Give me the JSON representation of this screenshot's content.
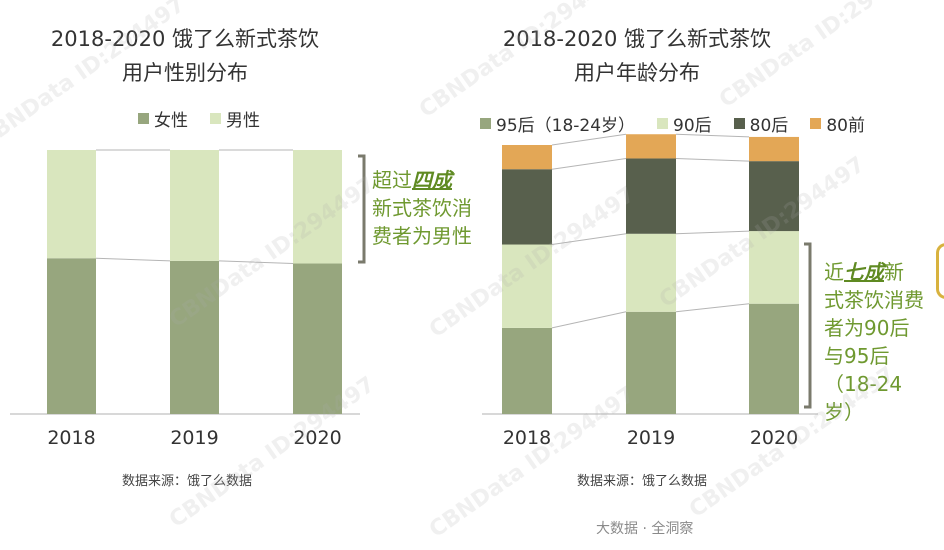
{
  "chart_data": [
    {
      "type": "bar",
      "stacked": true,
      "normalized": true,
      "title": [
        "2018-2020 饿了么新式茶饮",
        "用户性别分布"
      ],
      "categories": [
        "2018",
        "2019",
        "2020"
      ],
      "series": [
        {
          "name": "女性",
          "color": "#97a67e",
          "values": [
            59,
            58,
            57
          ]
        },
        {
          "name": "男性",
          "color": "#d9e6be",
          "values": [
            41,
            42,
            43
          ]
        }
      ],
      "ylim": [
        0,
        100
      ],
      "legend_position": "top",
      "annotation": {
        "prefix": "超过",
        "highlight": "四成",
        "rest": [
          "新式茶饮消",
          "费者为男性"
        ]
      },
      "source": "数据来源：饿了么数据"
    },
    {
      "type": "bar",
      "stacked": true,
      "normalized": true,
      "title": [
        "2018-2020 饿了么新式茶饮",
        "用户年龄分布"
      ],
      "categories": [
        "2018",
        "2019",
        "2020"
      ],
      "series": [
        {
          "name": "95后（18-24岁）",
          "color": "#97a67e",
          "values": [
            32,
            38,
            41
          ]
        },
        {
          "name": "90后",
          "color": "#d9e6be",
          "values": [
            31,
            29,
            27
          ]
        },
        {
          "name": "80后",
          "color": "#58604d",
          "values": [
            28,
            28,
            26
          ]
        },
        {
          "name": "80前",
          "color": "#e3a756",
          "values": [
            9,
            9,
            9
          ]
        }
      ],
      "ylim": [
        0,
        100
      ],
      "legend_position": "top",
      "annotation": {
        "prefix": "近",
        "highlight": "七成",
        "rest_first": "新",
        "rest": [
          "式茶饮消费",
          "者为90后",
          "与95后",
          "（18-24",
          "岁）"
        ]
      },
      "source": "数据来源：饿了么数据"
    }
  ],
  "footer": "大数据 · 全洞察",
  "watermark": "CBNData ID:294497",
  "colors": {
    "accent_green": "#6f9930",
    "bracket": "#7a7a6c",
    "connector": "#b5b5b5",
    "axis": "#b0b0b0"
  }
}
